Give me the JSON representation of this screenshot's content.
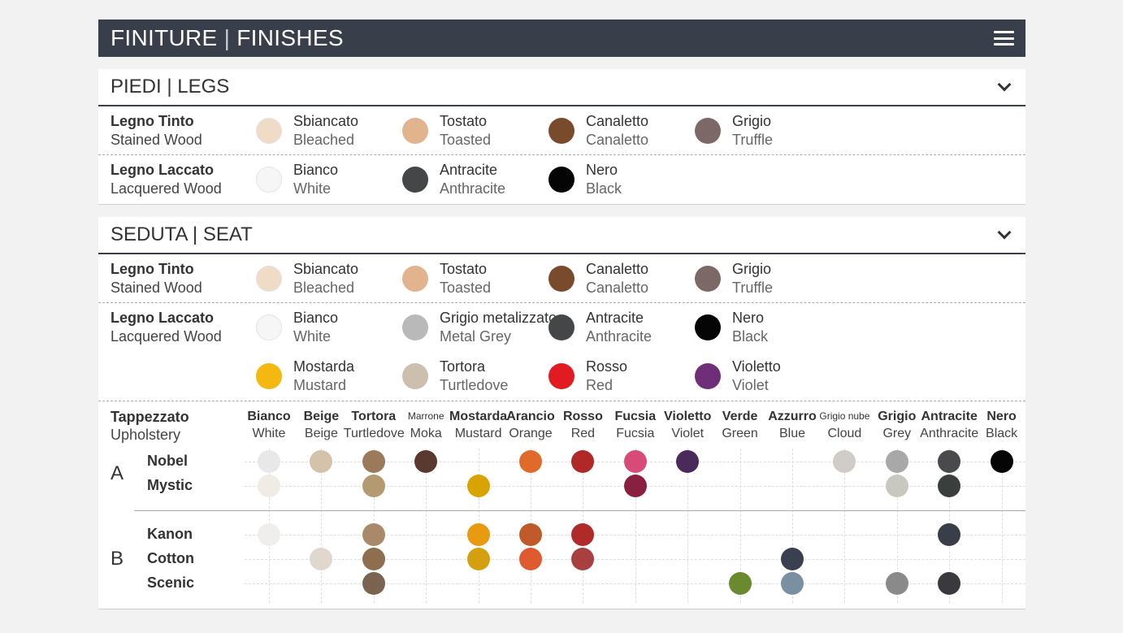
{
  "header": {
    "title_it": "FINITURE",
    "sep": "|",
    "title_en": "FINISHES"
  },
  "legs": {
    "title_it": "PIEDI",
    "sep": "|",
    "title_en": "LEGS",
    "rows": [
      {
        "label1": "Legno Tinto",
        "label2": "Stained Wood",
        "items": [
          {
            "it": "Sbiancato",
            "en": "Bleached",
            "color": "#f0dcc6"
          },
          {
            "it": "Tostato",
            "en": "Toasted",
            "color": "#e2b48e"
          },
          {
            "it": "Canaletto",
            "en": "Canaletto",
            "color": "#7a4a2c"
          },
          {
            "it": "Grigio",
            "en": "Truffle",
            "color": "#7d6868"
          }
        ]
      },
      {
        "label1": "Legno Laccato",
        "label2": "Lacquered Wood",
        "items": [
          {
            "it": "Bianco",
            "en": "White",
            "color": "#f6f6f6"
          },
          {
            "it": "Antracite",
            "en": "Anthracite",
            "color": "#444648"
          },
          {
            "it": "Nero",
            "en": "Black",
            "color": "#050505"
          }
        ]
      }
    ]
  },
  "seat": {
    "title_it": "SEDUTA",
    "sep": "|",
    "title_en": "SEAT",
    "rows": [
      {
        "label1": "Legno Tinto",
        "label2": "Stained Wood",
        "items": [
          {
            "it": "Sbiancato",
            "en": "Bleached",
            "color": "#f0dcc6"
          },
          {
            "it": "Tostato",
            "en": "Toasted",
            "color": "#e2b48e"
          },
          {
            "it": "Canaletto",
            "en": "Canaletto",
            "color": "#7a4a2c"
          },
          {
            "it": "Grigio",
            "en": "Truffle",
            "color": "#7d6868"
          }
        ]
      },
      {
        "label1": "Legno Laccato",
        "label2": "Lacquered Wood",
        "items": [
          {
            "it": "Bianco",
            "en": "White",
            "color": "#f6f6f6"
          },
          {
            "it": "Grigio metalizzato",
            "en": "Metal Grey",
            "color": "#b9b9b9"
          },
          {
            "it": "Antracite",
            "en": "Anthracite",
            "color": "#444648"
          },
          {
            "it": "Nero",
            "en": "Black",
            "color": "#050505"
          },
          {
            "it": "Mostarda",
            "en": "Mustard",
            "color": "#f4b810"
          },
          {
            "it": "Tortora",
            "en": "Turtledove",
            "color": "#cdbfae"
          },
          {
            "it": "Rosso",
            "en": "Red",
            "color": "#e21a22"
          },
          {
            "it": "Violetto",
            "en": "Violet",
            "color": "#6e2f78"
          }
        ]
      }
    ],
    "upholstery": {
      "label1": "Tappezzato",
      "label2": "Upholstery",
      "columns": [
        {
          "it": "Bianco",
          "en": "White"
        },
        {
          "it": "Beige",
          "en": "Beige"
        },
        {
          "it": "Tortora",
          "en": "Turtledove"
        },
        {
          "it": "Marrone",
          "en": "Moka",
          "small": true
        },
        {
          "it": "Mostarda",
          "en": "Mustard"
        },
        {
          "it": "Arancio",
          "en": "Orange"
        },
        {
          "it": "Rosso",
          "en": "Red"
        },
        {
          "it": "Fucsia",
          "en": "Fucsia"
        },
        {
          "it": "Violetto",
          "en": "Violet"
        },
        {
          "it": "Verde",
          "en": "Green"
        },
        {
          "it": "Azzurro",
          "en": "Blue"
        },
        {
          "it": "Grigio nube",
          "en": "Cloud",
          "small": true
        },
        {
          "it": "Grigio",
          "en": "Grey"
        },
        {
          "it": "Antracite",
          "en": "Anthracite"
        },
        {
          "it": "Nero",
          "en": "Black"
        }
      ],
      "groups": [
        {
          "name": "A",
          "fabrics": [
            {
              "name": "Nobel",
              "swatches": [
                {
                  "col": 0,
                  "color": "#e8e8e8"
                },
                {
                  "col": 1,
                  "color": "#d4c3aa"
                },
                {
                  "col": 2,
                  "color": "#9a7a5a"
                },
                {
                  "col": 3,
                  "color": "#5a3a30"
                },
                {
                  "col": 5,
                  "color": "#e06a2a"
                },
                {
                  "col": 6,
                  "color": "#b02828"
                },
                {
                  "col": 7,
                  "color": "#d84a78"
                },
                {
                  "col": 8,
                  "color": "#4a2a5a"
                },
                {
                  "col": 11,
                  "color": "#d0ccc8"
                },
                {
                  "col": 12,
                  "color": "#a8a8a8"
                },
                {
                  "col": 13,
                  "color": "#4a4a4c"
                },
                {
                  "col": 14,
                  "color": "#050505"
                }
              ]
            },
            {
              "name": "Mystic",
              "swatches": [
                {
                  "col": 0,
                  "color": "#f0ebe4"
                },
                {
                  "col": 2,
                  "color": "#b49a70"
                },
                {
                  "col": 4,
                  "color": "#d8a400"
                },
                {
                  "col": 7,
                  "color": "#8a2040"
                },
                {
                  "col": 12,
                  "color": "#c8c8c0"
                },
                {
                  "col": 13,
                  "color": "#3a3e3c"
                }
              ]
            }
          ]
        },
        {
          "name": "B",
          "fabrics": [
            {
              "name": "Kanon",
              "swatches": [
                {
                  "col": 0,
                  "color": "#f0eeec"
                },
                {
                  "col": 2,
                  "color": "#a88a6a"
                },
                {
                  "col": 4,
                  "color": "#e89a10"
                },
                {
                  "col": 5,
                  "color": "#c05a2a"
                },
                {
                  "col": 6,
                  "color": "#b02a2a"
                },
                {
                  "col": 13,
                  "color": "#3a3e48"
                }
              ]
            },
            {
              "name": "Cotton",
              "swatches": [
                {
                  "col": 1,
                  "color": "#e0d8cc"
                },
                {
                  "col": 2,
                  "color": "#8e6e4e"
                },
                {
                  "col": 4,
                  "color": "#d4a010"
                },
                {
                  "col": 5,
                  "color": "#e05a30"
                },
                {
                  "col": 6,
                  "color": "#a84040"
                },
                {
                  "col": 10,
                  "color": "#3a4050"
                }
              ]
            },
            {
              "name": "Scenic",
              "swatches": [
                {
                  "col": 2,
                  "color": "#7a6450"
                },
                {
                  "col": 9,
                  "color": "#6a8a30"
                },
                {
                  "col": 10,
                  "color": "#7890a0"
                },
                {
                  "col": 12,
                  "color": "#8a8a8a"
                },
                {
                  "col": 13,
                  "color": "#3a3a3e"
                }
              ]
            }
          ]
        }
      ]
    }
  }
}
